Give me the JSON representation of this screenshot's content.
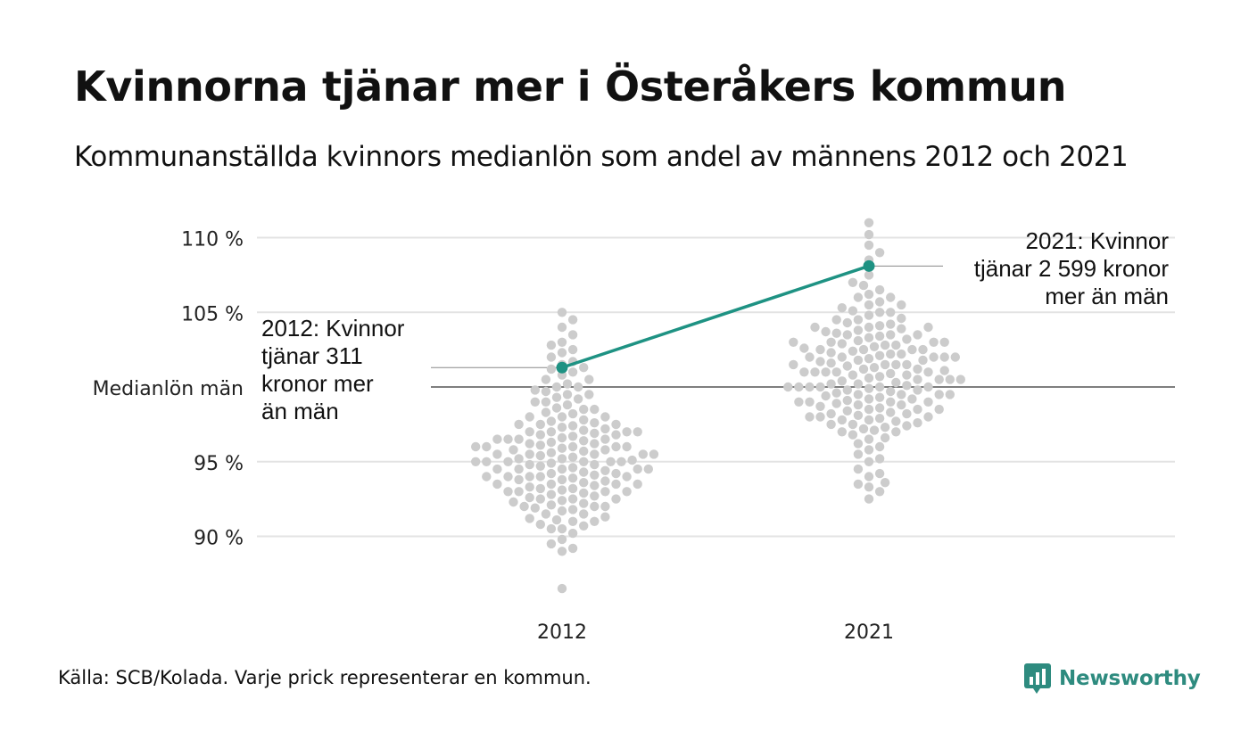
{
  "page": {
    "title": "Kvinnorna tjänar mer i Österåkers kommun",
    "subtitle": "Kommunanställda kvinnors medianlön som andel av männens 2012 och 2021",
    "source": "Källa: SCB/Kolada. Varje prick representerar en kommun.",
    "brand": "Newsworthy",
    "brand_icon": "bar-chart-logo-icon",
    "brand_color": "#2e8b7f"
  },
  "chart_data": {
    "type": "scatter",
    "categories": [
      "2012",
      "2021"
    ],
    "y_ticks": [
      {
        "value": 110,
        "label": "110 %"
      },
      {
        "value": 105,
        "label": "105 %"
      },
      {
        "value": 100,
        "label": "Medianlön män"
      },
      {
        "value": 95,
        "label": "95 %"
      },
      {
        "value": 90,
        "label": "90 %"
      }
    ],
    "ylim": [
      86,
      111.5
    ],
    "grid": true,
    "reference_line": {
      "value": 100
    },
    "highlight": {
      "color": "#1e9283",
      "points": [
        {
          "category": "2012",
          "value": 101.3
        },
        {
          "category": "2021",
          "value": 108.1
        }
      ]
    },
    "annotations": [
      {
        "category": "2012",
        "text": "2012: Kvinnor\ntjänar 311\nkronor mer\nän män"
      },
      {
        "category": "2021",
        "text": "2021: Kvinnor\ntjänar 2 599 kronor\nmer än män"
      }
    ],
    "distribution": {
      "color": "#cccccc",
      "note": "Beeswarm of municipalities; one dot per municipality",
      "series": [
        {
          "category": "2012",
          "values": [
            86.5,
            89.0,
            89.2,
            89.5,
            89.8,
            90.2,
            90.5,
            90.5,
            90.7,
            90.8,
            91.0,
            91.0,
            91.1,
            91.2,
            91.3,
            91.5,
            91.5,
            91.7,
            91.8,
            91.9,
            92.0,
            92.0,
            92.0,
            92.1,
            92.2,
            92.3,
            92.4,
            92.5,
            92.5,
            92.5,
            92.6,
            92.7,
            92.8,
            92.9,
            93.0,
            93.0,
            93.0,
            93.0,
            93.1,
            93.2,
            93.2,
            93.3,
            93.4,
            93.5,
            93.5,
            93.5,
            93.5,
            93.6,
            93.7,
            93.8,
            93.8,
            93.9,
            94.0,
            94.0,
            94.0,
            94.0,
            94.0,
            94.1,
            94.2,
            94.2,
            94.3,
            94.4,
            94.5,
            94.5,
            94.5,
            94.5,
            94.5,
            94.6,
            94.7,
            94.8,
            94.8,
            94.9,
            95.0,
            95.0,
            95.0,
            95.0,
            95.0,
            95.0,
            95.1,
            95.2,
            95.2,
            95.3,
            95.4,
            95.5,
            95.5,
            95.5,
            95.5,
            95.5,
            95.6,
            95.7,
            95.8,
            95.8,
            95.9,
            96.0,
            96.0,
            96.0,
            96.0,
            96.0,
            96.1,
            96.2,
            96.2,
            96.3,
            96.4,
            96.5,
            96.5,
            96.5,
            96.5,
            96.6,
            96.7,
            96.8,
            96.8,
            96.9,
            97.0,
            97.0,
            97.0,
            97.0,
            97.1,
            97.2,
            97.3,
            97.4,
            97.5,
            97.5,
            97.5,
            97.6,
            97.7,
            97.8,
            98.0,
            98.0,
            98.0,
            98.2,
            98.3,
            98.5,
            98.5,
            98.6,
            98.8,
            99.0,
            99.0,
            99.2,
            99.3,
            99.5,
            99.5,
            99.7,
            99.8,
            100.0,
            100.0,
            100.2,
            100.5,
            100.5,
            100.8,
            101.0,
            101.2,
            101.3,
            101.5,
            101.7,
            102.0,
            102.3,
            102.5,
            102.8,
            103.0,
            103.5,
            104.0,
            104.5,
            105.0
          ]
        },
        {
          "category": "2021",
          "values": [
            92.5,
            93.0,
            93.3,
            93.5,
            93.6,
            94.0,
            94.2,
            94.5,
            95.0,
            95.2,
            95.5,
            95.8,
            96.0,
            96.2,
            96.5,
            96.6,
            96.8,
            97.0,
            97.0,
            97.1,
            97.2,
            97.3,
            97.4,
            97.5,
            97.5,
            97.6,
            97.7,
            97.8,
            97.8,
            97.9,
            98.0,
            98.0,
            98.0,
            98.1,
            98.2,
            98.2,
            98.3,
            98.4,
            98.5,
            98.5,
            98.5,
            98.6,
            98.7,
            98.8,
            98.8,
            98.9,
            99.0,
            99.0,
            99.0,
            99.0,
            99.1,
            99.2,
            99.2,
            99.3,
            99.4,
            99.5,
            99.5,
            99.5,
            99.5,
            99.6,
            99.7,
            99.8,
            99.8,
            99.9,
            100.0,
            100.0,
            100.0,
            100.0,
            100.0,
            100.0,
            100.1,
            100.2,
            100.2,
            100.3,
            100.4,
            100.5,
            100.5,
            100.5,
            100.5,
            100.6,
            100.7,
            100.8,
            100.8,
            100.9,
            101.0,
            101.0,
            101.0,
            101.0,
            101.0,
            101.1,
            101.2,
            101.2,
            101.3,
            101.4,
            101.5,
            101.5,
            101.5,
            101.5,
            101.6,
            101.7,
            101.8,
            101.8,
            101.9,
            102.0,
            102.0,
            102.0,
            102.0,
            102.0,
            102.1,
            102.2,
            102.2,
            102.3,
            102.4,
            102.5,
            102.5,
            102.5,
            102.5,
            102.6,
            102.7,
            102.8,
            102.8,
            102.9,
            103.0,
            103.0,
            103.0,
            103.0,
            103.1,
            103.2,
            103.3,
            103.4,
            103.5,
            103.5,
            103.5,
            103.6,
            103.7,
            103.8,
            103.9,
            104.0,
            104.0,
            104.0,
            104.1,
            104.2,
            104.3,
            104.5,
            104.5,
            104.6,
            104.8,
            105.0,
            105.0,
            105.1,
            105.3,
            105.5,
            105.5,
            105.7,
            106.0,
            106.0,
            106.2,
            106.5,
            106.8,
            107.0,
            107.5,
            108.5,
            109.0,
            109.5,
            110.2,
            111.0
          ]
        }
      ]
    }
  }
}
